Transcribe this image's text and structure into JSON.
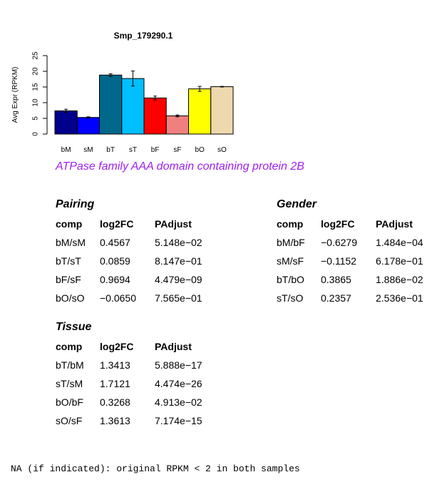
{
  "chart_data": {
    "type": "bar",
    "title": "Smp_179290.1",
    "ylabel": "Avg Expr (RPKM)",
    "xlabel": "",
    "ylim": [
      0,
      25
    ],
    "yticks": [
      0,
      5,
      10,
      15,
      20,
      25
    ],
    "categories": [
      "bM",
      "sM",
      "bT",
      "sT",
      "bF",
      "sF",
      "bO",
      "sO"
    ],
    "values": [
      7.4,
      5.3,
      18.8,
      17.7,
      11.5,
      5.8,
      14.4,
      15.1
    ],
    "errors": [
      0.5,
      0.2,
      0.4,
      2.4,
      0.6,
      0.3,
      0.8,
      0.1
    ],
    "colors": [
      "#00008b",
      "#0000ff",
      "#00688b",
      "#00bfff",
      "#ff0000",
      "#f08080",
      "#ffff00",
      "#eed8ae"
    ]
  },
  "subtitle": "ATPase family AAA domain containing protein 2B",
  "tables": [
    {
      "title": "Pairing",
      "headers": [
        "comp",
        "log2FC",
        "PAdjust"
      ],
      "rows": [
        [
          "bM/sM",
          "0.4567",
          "5.148e−02"
        ],
        [
          "bT/sT",
          "0.0859",
          "8.147e−01"
        ],
        [
          "bF/sF",
          "0.9694",
          "4.479e−09"
        ],
        [
          "bO/sO",
          "−0.0650",
          "7.565e−01"
        ]
      ]
    },
    {
      "title": "Gender",
      "headers": [
        "comp",
        "log2FC",
        "PAdjust"
      ],
      "rows": [
        [
          "bM/bF",
          "−0.6279",
          "1.484e−04"
        ],
        [
          "sM/sF",
          "−0.1152",
          "6.178e−01"
        ],
        [
          "bT/bO",
          "0.3865",
          "1.886e−02"
        ],
        [
          "sT/sO",
          "0.2357",
          "2.536e−01"
        ]
      ]
    },
    {
      "title": "Tissue",
      "headers": [
        "comp",
        "log2FC",
        "PAdjust"
      ],
      "rows": [
        [
          "bT/bM",
          "1.3413",
          "5.888e−17"
        ],
        [
          "sT/sM",
          "1.7121",
          "4.474e−26"
        ],
        [
          "bO/bF",
          "0.3268",
          "4.913e−02"
        ],
        [
          "sO/sF",
          "1.3613",
          "7.174e−15"
        ]
      ]
    }
  ],
  "footer": "NA (if indicated): original RPKM < 2 in both samples"
}
